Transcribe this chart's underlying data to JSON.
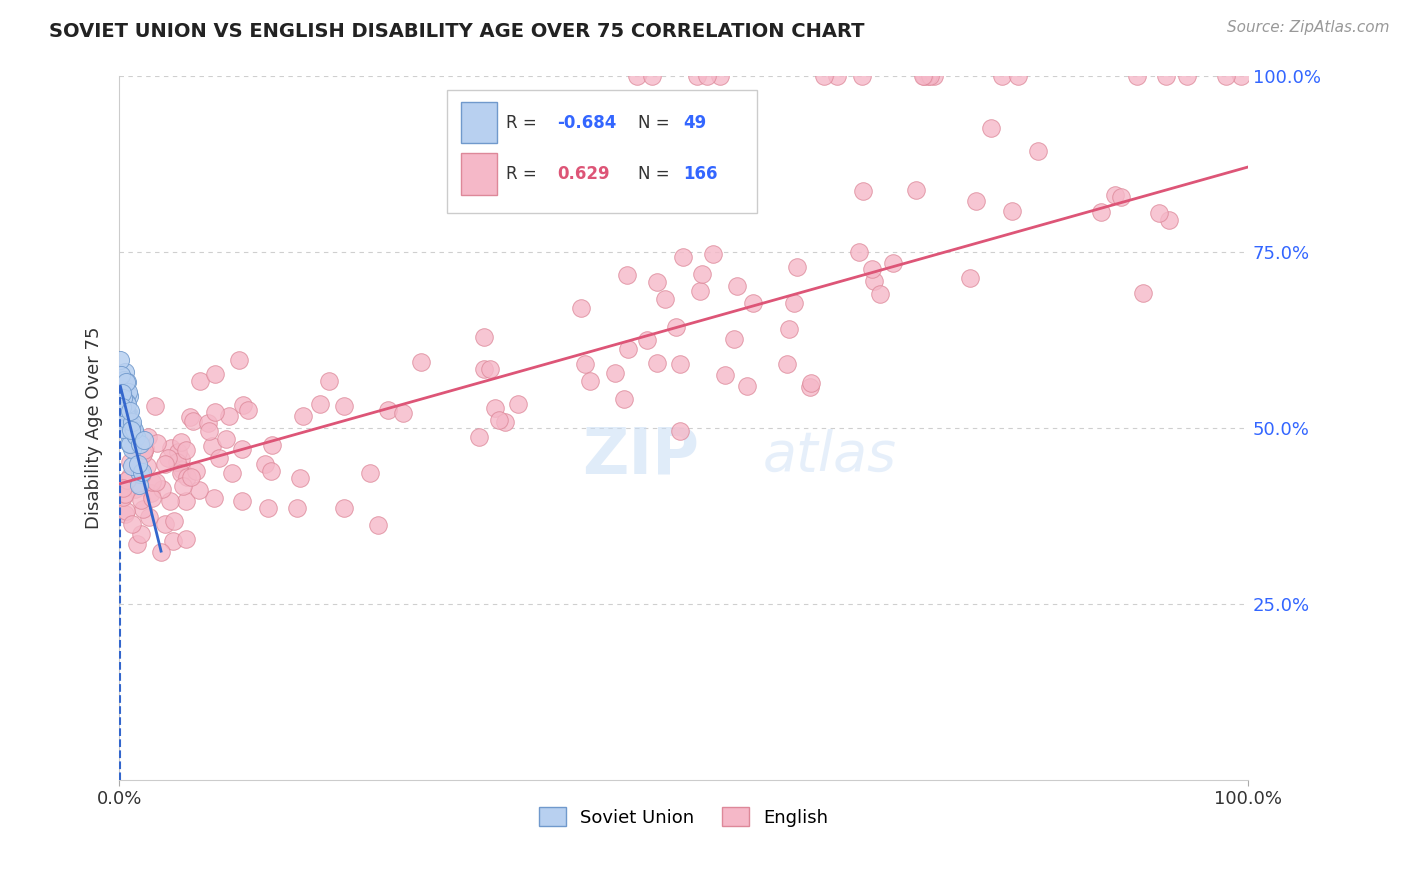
{
  "title": "SOVIET UNION VS ENGLISH DISABILITY AGE OVER 75 CORRELATION CHART",
  "source_text": "Source: ZipAtlas.com",
  "ylabel": "Disability Age Over 75",
  "legend_soviet_r": "-0.684",
  "legend_soviet_n": "49",
  "legend_english_r": "0.629",
  "legend_english_n": "166",
  "xlim": [
    0.0,
    1.0
  ],
  "ylim": [
    0.0,
    1.0
  ],
  "background_color": "#ffffff",
  "grid_color": "#bbbbbb",
  "soviet_color": "#b8d0f0",
  "soviet_edge_color": "#7099cc",
  "english_color": "#f5b8c8",
  "english_edge_color": "#dd8899",
  "soviet_line_color": "#3366cc",
  "english_line_color": "#dd5577",
  "title_color": "#222222",
  "label_color": "#333333",
  "source_color": "#999999",
  "right_label_color": "#3366ff",
  "legend_r_color_soviet": "#3366ff",
  "legend_r_color_english": "#dd5577",
  "legend_n_color": "#3366ff",
  "english_trendline_x": [
    0.0,
    1.0
  ],
  "english_trendline_y": [
    0.42,
    0.87
  ]
}
